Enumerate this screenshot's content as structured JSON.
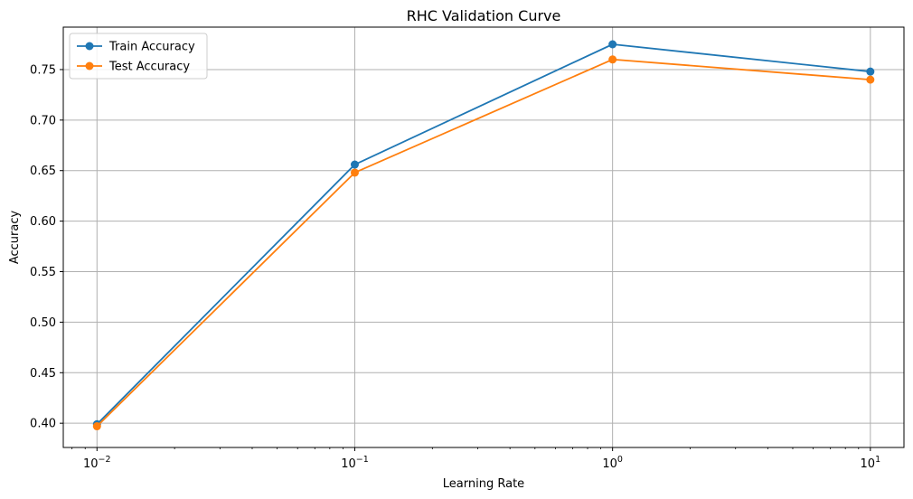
{
  "chart_data": {
    "type": "line",
    "title": "RHC Validation Curve",
    "xlabel": "Learning Rate",
    "ylabel": "Accuracy",
    "x_scale": "log",
    "x": [
      0.01,
      0.1,
      1,
      10
    ],
    "xlim": [
      0.0074,
      13.5
    ],
    "ylim": [
      0.376,
      0.792
    ],
    "x_ticks": [
      {
        "value": 0.01,
        "base": "10",
        "exp": "−2"
      },
      {
        "value": 0.1,
        "base": "10",
        "exp": "−1"
      },
      {
        "value": 1,
        "base": "10",
        "exp": "0"
      },
      {
        "value": 10,
        "base": "10",
        "exp": "1"
      }
    ],
    "y_ticks": [
      "0.40",
      "0.45",
      "0.50",
      "0.55",
      "0.60",
      "0.65",
      "0.70",
      "0.75"
    ],
    "grid": true,
    "legend_position": "top-left",
    "series": [
      {
        "name": "Train Accuracy",
        "color": "#1f77b4",
        "marker": "circle",
        "values": [
          0.399,
          0.656,
          0.775,
          0.748
        ]
      },
      {
        "name": "Test Accuracy",
        "color": "#ff7f0e",
        "marker": "circle",
        "values": [
          0.397,
          0.648,
          0.76,
          0.74
        ]
      }
    ]
  }
}
